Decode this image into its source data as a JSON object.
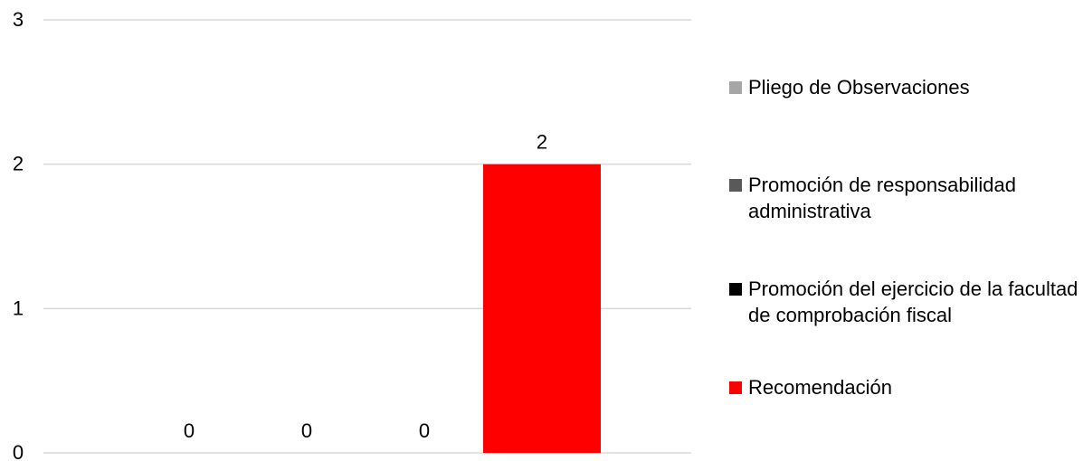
{
  "chart_data": {
    "type": "bar",
    "categories": [
      "",
      "",
      "",
      ""
    ],
    "series": [
      {
        "name": "Pliego de Observaciones",
        "values": [
          0,
          null,
          null,
          null
        ],
        "color": "#a6a6a6"
      },
      {
        "name": "Promoción de responsabilidad administrativa",
        "values": [
          null,
          0,
          null,
          null
        ],
        "color": "#595959"
      },
      {
        "name": "Promoción del ejercicio de la facultad de comprobación fiscal",
        "values": [
          null,
          null,
          0,
          null
        ],
        "color": "#000000"
      },
      {
        "name": "Recomendación",
        "values": [
          null,
          null,
          null,
          2
        ],
        "color": "#ff0000"
      }
    ],
    "data_labels": [
      "0",
      "0",
      "0",
      "2"
    ],
    "yticks": [
      "0",
      "1",
      "2",
      "3"
    ],
    "ylim": [
      0,
      3
    ],
    "grid": true,
    "legend_position": "right",
    "title": "",
    "xlabel": "",
    "ylabel": ""
  }
}
